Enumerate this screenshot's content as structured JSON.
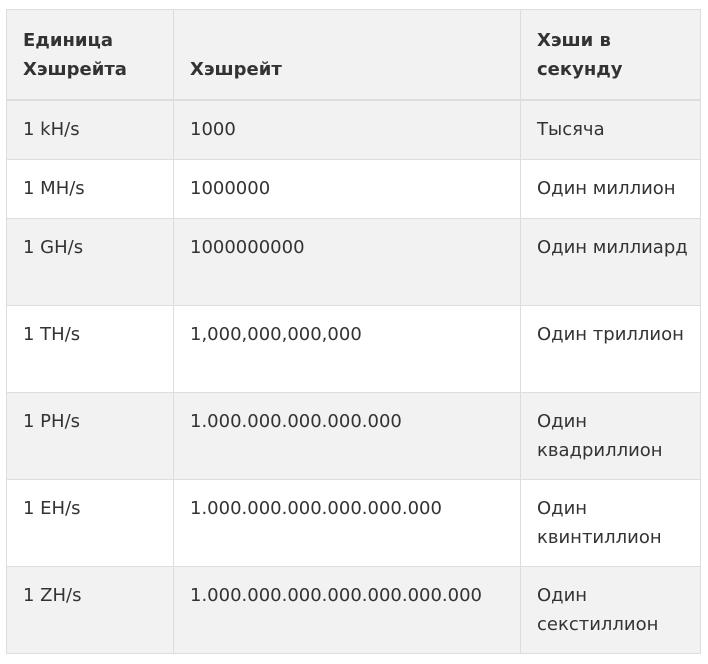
{
  "table": {
    "headers": [
      "Единица Хэшрейта",
      "Хэшрейт",
      "Хэши в секунду"
    ],
    "rows": [
      {
        "unit": "1 kH/s",
        "hashrate": "1000",
        "per_second": "Тысяча"
      },
      {
        "unit": "1 MH/s",
        "hashrate": "1000000",
        "per_second": "Один миллион"
      },
      {
        "unit": "1 GH/s",
        "hashrate": "1000000000",
        "per_second": "Один миллиард"
      },
      {
        "unit": "1 TH/s",
        "hashrate": "1,000,000,000,000",
        "per_second": "Один триллион"
      },
      {
        "unit": "1 PH/s",
        "hashrate": "1.000.000.000.000.000",
        "per_second": "Один квадриллион"
      },
      {
        "unit": "1 EH/s",
        "hashrate": "1.000.000.000.000.000.000",
        "per_second": "Один квинтиллион"
      },
      {
        "unit": "1 ZH/s",
        "hashrate": "1.000.000.000.000.000.000.000",
        "per_second": "Один секстиллион"
      }
    ]
  }
}
